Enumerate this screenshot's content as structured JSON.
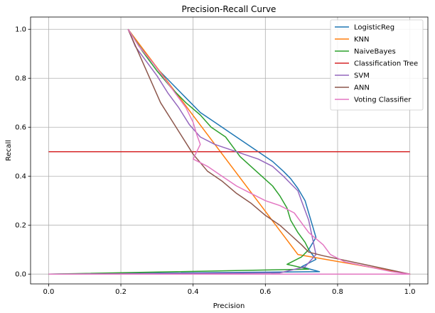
{
  "chart_data": {
    "type": "line",
    "title": "Precision-Recall Curve",
    "xlabel": "Precision",
    "ylabel": "Recall",
    "xlim": [
      -0.05,
      1.05
    ],
    "ylim": [
      -0.04,
      1.05
    ],
    "xticks": [
      0.0,
      0.2,
      0.4,
      0.6,
      0.8,
      1.0
    ],
    "yticks": [
      0.0,
      0.2,
      0.4,
      0.6,
      0.8,
      1.0
    ],
    "xtick_labels": [
      "0.0",
      "0.2",
      "0.4",
      "0.6",
      "0.8",
      "1.0"
    ],
    "ytick_labels": [
      "0.0",
      "0.2",
      "0.4",
      "0.6",
      "0.8",
      "1.0"
    ],
    "grid": true,
    "legend_position": "top-right",
    "series": [
      {
        "name": "LogisticReg",
        "color": "#1f77b4",
        "points": [
          [
            0.22,
            1.0
          ],
          [
            0.26,
            0.92
          ],
          [
            0.3,
            0.84
          ],
          [
            0.34,
            0.78
          ],
          [
            0.38,
            0.72
          ],
          [
            0.42,
            0.66
          ],
          [
            0.46,
            0.62
          ],
          [
            0.5,
            0.58
          ],
          [
            0.54,
            0.54
          ],
          [
            0.58,
            0.5
          ],
          [
            0.62,
            0.46
          ],
          [
            0.65,
            0.42
          ],
          [
            0.67,
            0.39
          ],
          [
            0.69,
            0.35
          ],
          [
            0.71,
            0.3
          ],
          [
            0.72,
            0.25
          ],
          [
            0.73,
            0.2
          ],
          [
            0.74,
            0.15
          ],
          [
            0.72,
            0.1
          ],
          [
            0.74,
            0.06
          ],
          [
            0.7,
            0.03
          ],
          [
            0.75,
            0.01
          ],
          [
            0.0,
            0.0
          ]
        ]
      },
      {
        "name": "KNN",
        "color": "#ff7f0e",
        "points": [
          [
            0.22,
            1.0
          ],
          [
            0.69,
            0.08
          ],
          [
            1.0,
            0.0
          ],
          [
            0.0,
            0.0
          ]
        ]
      },
      {
        "name": "NaiveBayes",
        "color": "#2ca02c",
        "points": [
          [
            0.22,
            1.0
          ],
          [
            0.26,
            0.91
          ],
          [
            0.3,
            0.83
          ],
          [
            0.34,
            0.76
          ],
          [
            0.38,
            0.7
          ],
          [
            0.42,
            0.65
          ],
          [
            0.45,
            0.6
          ],
          [
            0.49,
            0.56
          ],
          [
            0.51,
            0.52
          ],
          [
            0.53,
            0.48
          ],
          [
            0.56,
            0.44
          ],
          [
            0.59,
            0.4
          ],
          [
            0.62,
            0.36
          ],
          [
            0.64,
            0.32
          ],
          [
            0.66,
            0.27
          ],
          [
            0.67,
            0.22
          ],
          [
            0.69,
            0.17
          ],
          [
            0.71,
            0.13
          ],
          [
            0.72,
            0.1
          ],
          [
            0.7,
            0.07
          ],
          [
            0.66,
            0.04
          ],
          [
            0.72,
            0.02
          ],
          [
            0.0,
            0.0
          ]
        ]
      },
      {
        "name": "Classification Tree",
        "color": "#d62728",
        "points": [
          [
            0.0,
            0.5
          ],
          [
            1.0,
            0.5
          ]
        ]
      },
      {
        "name": "SVM",
        "color": "#9467bd",
        "points": [
          [
            0.22,
            1.0
          ],
          [
            0.24,
            0.93
          ],
          [
            0.27,
            0.87
          ],
          [
            0.3,
            0.81
          ],
          [
            0.33,
            0.74
          ],
          [
            0.36,
            0.68
          ],
          [
            0.39,
            0.61
          ],
          [
            0.42,
            0.56
          ],
          [
            0.46,
            0.53
          ],
          [
            0.5,
            0.51
          ],
          [
            0.54,
            0.49
          ],
          [
            0.58,
            0.47
          ],
          [
            0.62,
            0.44
          ],
          [
            0.65,
            0.4
          ],
          [
            0.67,
            0.37
          ],
          [
            0.69,
            0.34
          ],
          [
            0.7,
            0.3
          ],
          [
            0.72,
            0.22
          ],
          [
            0.73,
            0.15
          ],
          [
            0.74,
            0.08
          ],
          [
            0.71,
            0.03
          ],
          [
            0.64,
            0.005
          ],
          [
            0.0,
            0.0
          ]
        ]
      },
      {
        "name": "ANN",
        "color": "#8c564b",
        "points": [
          [
            0.22,
            1.0
          ],
          [
            0.25,
            0.9
          ],
          [
            0.28,
            0.8
          ],
          [
            0.31,
            0.7
          ],
          [
            0.34,
            0.63
          ],
          [
            0.37,
            0.56
          ],
          [
            0.4,
            0.49
          ],
          [
            0.44,
            0.42
          ],
          [
            0.48,
            0.38
          ],
          [
            0.52,
            0.33
          ],
          [
            0.56,
            0.29
          ],
          [
            0.6,
            0.24
          ],
          [
            0.64,
            0.2
          ],
          [
            0.67,
            0.16
          ],
          [
            0.7,
            0.12
          ],
          [
            0.72,
            0.09
          ],
          [
            0.76,
            0.075
          ],
          [
            1.0,
            0.0
          ],
          [
            0.0,
            0.0
          ]
        ]
      },
      {
        "name": "Voting Classifier",
        "color": "#e377c2",
        "points": [
          [
            0.22,
            1.0
          ],
          [
            0.25,
            0.93
          ],
          [
            0.29,
            0.86
          ],
          [
            0.32,
            0.8
          ],
          [
            0.35,
            0.74
          ],
          [
            0.38,
            0.68
          ],
          [
            0.4,
            0.62
          ],
          [
            0.41,
            0.57
          ],
          [
            0.42,
            0.53
          ],
          [
            0.41,
            0.5
          ],
          [
            0.4,
            0.47
          ],
          [
            0.44,
            0.44
          ],
          [
            0.48,
            0.4
          ],
          [
            0.52,
            0.36
          ],
          [
            0.56,
            0.33
          ],
          [
            0.6,
            0.3
          ],
          [
            0.64,
            0.28
          ],
          [
            0.68,
            0.25
          ],
          [
            0.7,
            0.21
          ],
          [
            0.72,
            0.17
          ],
          [
            0.76,
            0.12
          ],
          [
            0.78,
            0.08
          ],
          [
            0.82,
            0.05
          ],
          [
            0.95,
            0.01
          ],
          [
            1.0,
            0.0
          ],
          [
            0.0,
            0.0
          ]
        ]
      }
    ]
  }
}
